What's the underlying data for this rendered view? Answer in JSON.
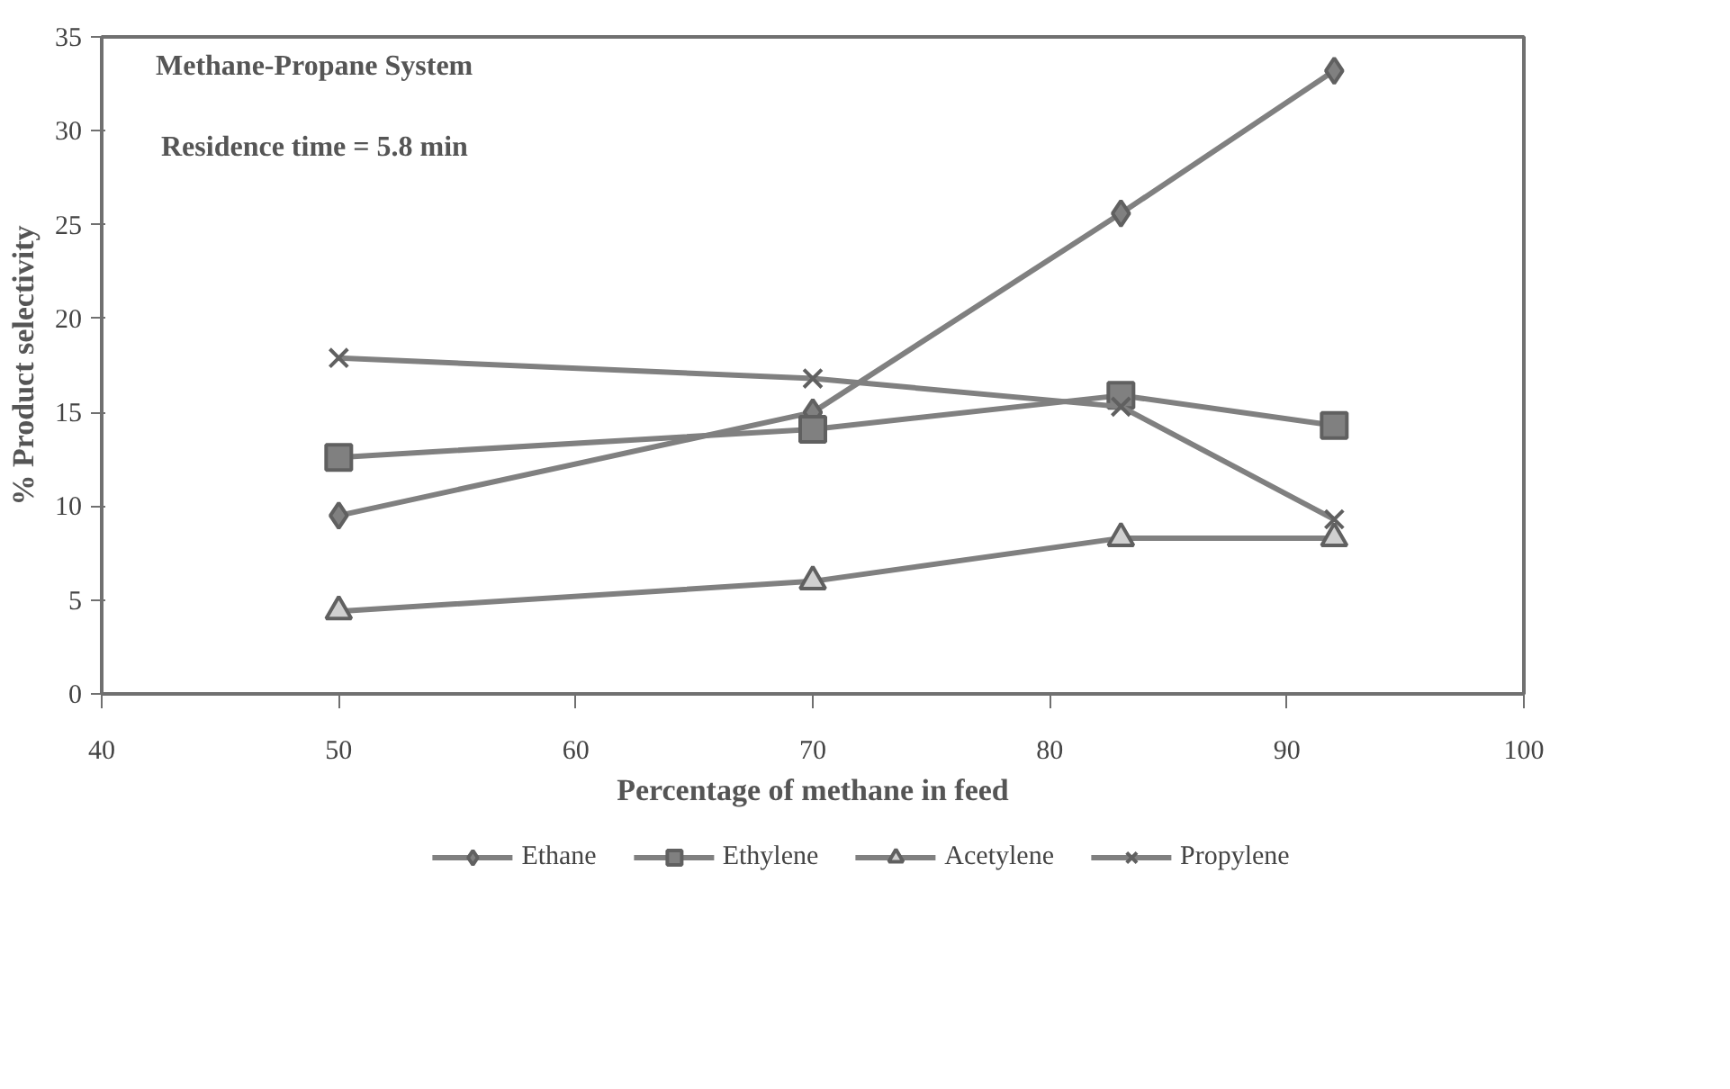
{
  "chart_data": {
    "type": "line",
    "xlabel": "Percentage of methane in feed",
    "ylabel": "% Product selectivity",
    "annotations": [
      "Methane-Propane System",
      "Residence time = 5.8 min"
    ],
    "x": [
      50,
      70,
      83,
      92
    ],
    "series": [
      {
        "name": "Ethane",
        "color": "#808080",
        "marker": "diamond",
        "values": [
          9.5,
          15.0,
          25.6,
          33.2
        ]
      },
      {
        "name": "Ethylene",
        "color": "#808080",
        "marker": "square",
        "values": [
          12.6,
          14.1,
          15.9,
          14.3
        ]
      },
      {
        "name": "Acetylene",
        "color": "#808080",
        "marker": "triangle",
        "values": [
          4.4,
          6.0,
          8.3,
          8.3
        ]
      },
      {
        "name": "Propylene",
        "color": "#808080",
        "marker": "cross",
        "values": [
          17.9,
          16.8,
          15.3,
          9.3
        ]
      }
    ],
    "xlim": [
      40,
      100
    ],
    "xticks": [
      40,
      50,
      60,
      70,
      80,
      90,
      100
    ],
    "ylim": [
      0,
      35
    ],
    "yticks": [
      0,
      5,
      10,
      15,
      20,
      25,
      30,
      35
    ],
    "grid": false,
    "legend": "bottom",
    "line_style": "solid"
  }
}
